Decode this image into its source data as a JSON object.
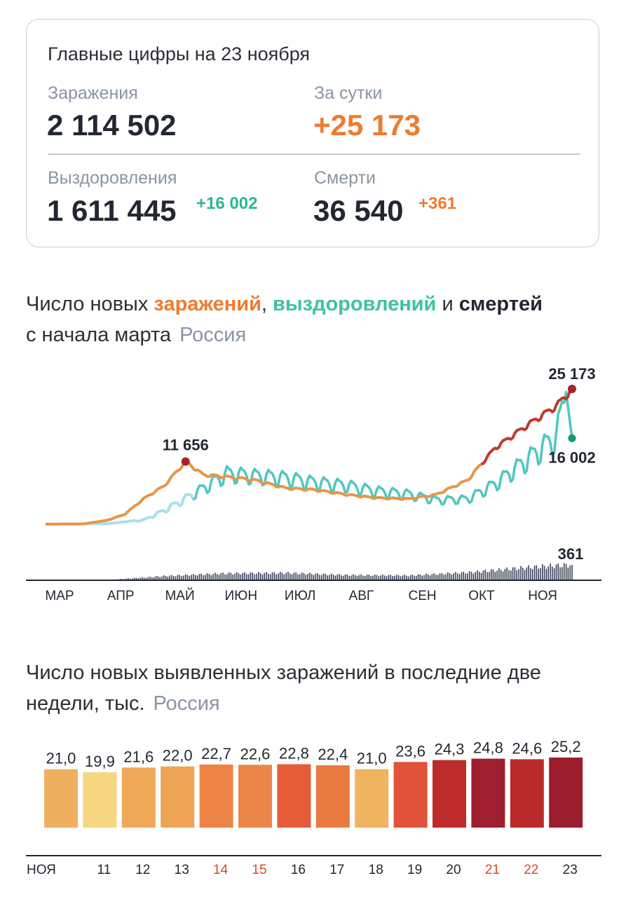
{
  "summary": {
    "title": "Главные цифры на 23 ноября",
    "infections": {
      "label": "Заражения",
      "value": "2 114 502"
    },
    "daily": {
      "label": "За сутки",
      "value": "+25 173"
    },
    "recoveries": {
      "label": "Выздоровления",
      "value": "1 611 445",
      "delta": "+16 002"
    },
    "deaths": {
      "label": "Смерти",
      "value": "36 540",
      "delta": "+361"
    }
  },
  "chart1": {
    "heading_part1": "Число новых ",
    "heading_infections": "заражений",
    "heading_sep": ", ",
    "heading_recoveries": "выздоровлений",
    "heading_and": " и ",
    "heading_deaths": "смертей",
    "heading_line2": "с начала марта",
    "region": "Россия",
    "peak_label": "11 656",
    "last_infections_label": "25 173",
    "last_recoveries_label": "16 002",
    "last_deaths_label": "361"
  },
  "chart2": {
    "heading_line1": "Число новых выявленных заражений в последние две",
    "heading_line2": "недели, тыс.",
    "region": "Россия"
  },
  "colors": {
    "infections": "#e5964a",
    "infections_recent": "#c0392b",
    "recoveries": "#3dc2b0",
    "recoveries_light": "#a8e0ea",
    "deaths": "#3b4259",
    "muted": "#8a94a3",
    "weekend": "#d9462b",
    "orange_text": "#ef7a30",
    "green_text": "#2ab88f"
  },
  "chart_data": [
    {
      "type": "line",
      "title": "Число новых заражений, выздоровлений и смертей с начала марта",
      "x_tick_labels": [
        "МАР",
        "АПР",
        "МАЙ",
        "ИЮН",
        "ИЮЛ",
        "АВГ",
        "СЕН",
        "ОКТ",
        "НОЯ"
      ],
      "x_start": "2020-03-01",
      "x_end": "2020-11-23",
      "series": [
        {
          "name": "заражений",
          "points": [
            [
              "2020-03-01",
              0
            ],
            [
              "2020-03-20",
              50
            ],
            [
              "2020-04-01",
              700
            ],
            [
              "2020-04-10",
              1800
            ],
            [
              "2020-04-20",
              4800
            ],
            [
              "2020-04-30",
              7100
            ],
            [
              "2020-05-11",
              11656
            ],
            [
              "2020-05-20",
              9200
            ],
            [
              "2020-06-01",
              8800
            ],
            [
              "2020-06-15",
              8200
            ],
            [
              "2020-07-01",
              6700
            ],
            [
              "2020-07-15",
              6400
            ],
            [
              "2020-08-01",
              5500
            ],
            [
              "2020-08-15",
              4900
            ],
            [
              "2020-09-01",
              4700
            ],
            [
              "2020-09-15",
              5500
            ],
            [
              "2020-10-01",
              8200
            ],
            [
              "2020-10-15",
              14200
            ],
            [
              "2020-11-01",
              18600
            ],
            [
              "2020-11-15",
              22000
            ],
            [
              "2020-11-23",
              25173
            ]
          ]
        },
        {
          "name": "выздоровлений",
          "points": [
            [
              "2020-03-01",
              0
            ],
            [
              "2020-04-01",
              100
            ],
            [
              "2020-04-20",
              800
            ],
            [
              "2020-05-01",
              2700
            ],
            [
              "2020-05-15",
              5600
            ],
            [
              "2020-06-01",
              9400
            ],
            [
              "2020-06-15",
              9000
            ],
            [
              "2020-07-01",
              8600
            ],
            [
              "2020-07-15",
              7800
            ],
            [
              "2020-08-01",
              7200
            ],
            [
              "2020-08-15",
              6200
            ],
            [
              "2020-09-01",
              5600
            ],
            [
              "2020-09-15",
              4500
            ],
            [
              "2020-10-01",
              4700
            ],
            [
              "2020-10-15",
              7500
            ],
            [
              "2020-11-01",
              12200
            ],
            [
              "2020-11-15",
              16300
            ],
            [
              "2020-11-20",
              24600
            ],
            [
              "2020-11-23",
              16002
            ]
          ]
        },
        {
          "name": "смертей",
          "points": [
            [
              "2020-04-01",
              5
            ],
            [
              "2020-05-01",
              100
            ],
            [
              "2020-06-01",
              160
            ],
            [
              "2020-07-01",
              170
            ],
            [
              "2020-08-01",
              120
            ],
            [
              "2020-09-01",
              110
            ],
            [
              "2020-10-01",
              180
            ],
            [
              "2020-11-01",
              300
            ],
            [
              "2020-11-23",
              361
            ]
          ]
        }
      ]
    },
    {
      "type": "bar",
      "title": "Число новых выявленных заражений в последние две недели, тыс.",
      "categories": [
        "НОЯ",
        "11",
        "12",
        "13",
        "14",
        "15",
        "16",
        "17",
        "18",
        "19",
        "20",
        "21",
        "22",
        "23"
      ],
      "value_labels": [
        "21,0",
        "19,9",
        "21,6",
        "22,0",
        "22,7",
        "22,6",
        "22,8",
        "22,4",
        "21,0",
        "23,6",
        "24,3",
        "24,8",
        "24,6",
        "25,2"
      ],
      "values": [
        21.0,
        19.9,
        21.6,
        22.0,
        22.7,
        22.6,
        22.8,
        22.4,
        21.0,
        23.6,
        24.3,
        24.8,
        24.6,
        25.2
      ],
      "bar_colors": [
        "#eeb05e",
        "#f6d680",
        "#eea857",
        "#eea355",
        "#ec8446",
        "#ec8648",
        "#e55d38",
        "#e97a42",
        "#f0b360",
        "#e0523a",
        "#bd2b2b",
        "#a01f2f",
        "#b82a2c",
        "#9c1d2e"
      ],
      "category_label_colors": [
        "#222831",
        "#222831",
        "#222831",
        "#222831",
        "#d9462b",
        "#d9462b",
        "#222831",
        "#222831",
        "#222831",
        "#222831",
        "#222831",
        "#d9462b",
        "#d9462b",
        "#222831"
      ],
      "ylim": [
        0,
        25.2
      ]
    }
  ]
}
